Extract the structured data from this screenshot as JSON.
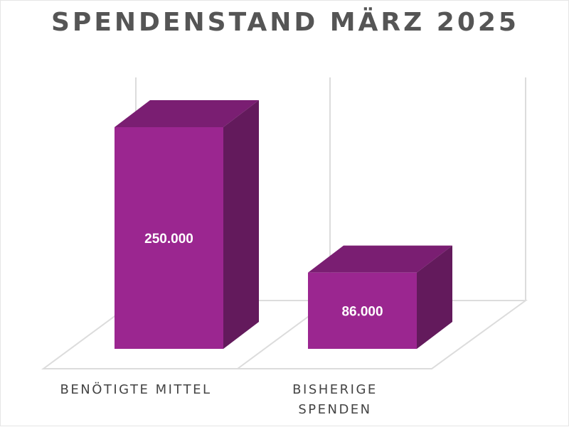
{
  "chart_data": {
    "type": "bar",
    "title": "SPENDENSTAND MÄRZ 2025",
    "categories": [
      "BENÖTIGTE MITTEL",
      "BISHERIGE SPENDEN"
    ],
    "values": [
      250000,
      86000
    ],
    "value_labels": [
      "250.000",
      "86.000"
    ],
    "ylim": [
      0,
      250000
    ],
    "grid": true,
    "legend": "none",
    "style": "3d",
    "colors": {
      "front": "#9b2690",
      "top": "#7a1e72",
      "side": "#631a5c",
      "grid": "#dcdcdc"
    }
  }
}
